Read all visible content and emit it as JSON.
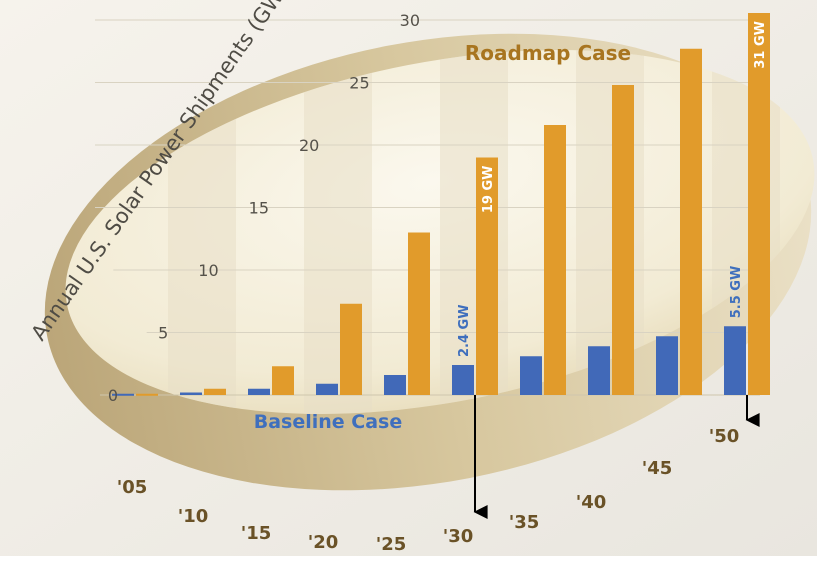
{
  "chart_data": {
    "type": "bar",
    "ylabel": "Annual U.S. Solar Power Shipments (GW)",
    "ylim": [
      0,
      30
    ],
    "yticks": [
      "0",
      "5",
      "10",
      "15",
      "20",
      "25",
      "30"
    ],
    "categories": [
      "'05",
      "'10",
      "'15",
      "'20",
      "'25",
      "'30",
      "'35",
      "'40",
      "'45",
      "'50"
    ],
    "grid": true,
    "series": [
      {
        "name": "Baseline Case",
        "color": "#4169b8",
        "values": [
          0.1,
          0.2,
          0.5,
          0.9,
          1.6,
          2.4,
          3.1,
          3.9,
          4.7,
          5.5
        ]
      },
      {
        "name": "Roadmap Case",
        "color": "#e19b2b",
        "values": [
          0.1,
          0.5,
          2.3,
          7.3,
          13.0,
          19.0,
          21.6,
          24.8,
          27.7,
          31.0
        ]
      }
    ],
    "data_labels": [
      {
        "series": "Baseline Case",
        "category": "'30",
        "text": "2.4 GW"
      },
      {
        "series": "Baseline Case",
        "category": "'50",
        "text": "5.5 GW"
      },
      {
        "series": "Roadmap Case",
        "category": "'30",
        "text": "19 GW"
      },
      {
        "series": "Roadmap Case",
        "category": "'50",
        "text": "31 GW"
      }
    ],
    "highlighted_categories": [
      "'30",
      "'50"
    ]
  }
}
